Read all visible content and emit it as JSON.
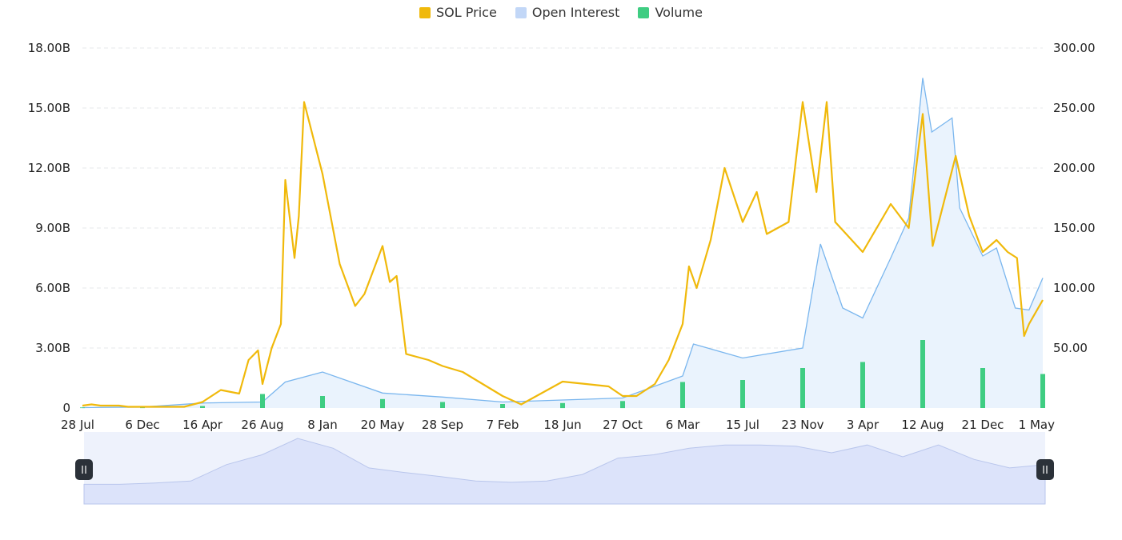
{
  "colors": {
    "price": "#F0B90B",
    "open_interest": "#7AB6EE",
    "open_interest_fill": "#EAF3FD",
    "volume": "#3FCD82",
    "grid": "#E6E8EB",
    "navigator_fill": "#DCE3FA",
    "navigator_bg": "#EEF2FC",
    "handle": "#2B3139"
  },
  "legend": [
    {
      "label": "SOL Price",
      "color": "#F0B90B",
      "icon": "square"
    },
    {
      "label": "Open Interest",
      "color": "#C2D7F7",
      "icon": "square"
    },
    {
      "label": "Volume",
      "color": "#3FCD82",
      "icon": "square"
    }
  ],
  "chart_data": {
    "type": "line",
    "title": "",
    "x_tick_labels": [
      "28 Jul",
      "6 Dec",
      "16 Apr",
      "26 Aug",
      "8 Jan",
      "20 May",
      "28 Sep",
      "7 Feb",
      "18 Jun",
      "27 Oct",
      "6 Mar",
      "15 Jul",
      "23 Nov",
      "3 Apr",
      "12 Aug",
      "21 Dec",
      "1 May"
    ],
    "y_left_ticks": [
      "0",
      "3.00B",
      "6.00B",
      "9.00B",
      "12.00B",
      "15.00B",
      "18.00B"
    ],
    "y_left_range": [
      0,
      18000000000
    ],
    "y_right_ticks": [
      "50.00",
      "100.00",
      "150.00",
      "200.00",
      "250.00",
      "300.00"
    ],
    "y_right_range": [
      0,
      300
    ],
    "grid": true,
    "legend_position": "top-center",
    "series": [
      {
        "name": "SOL Price",
        "axis": "right",
        "style": "line",
        "x": [
          "28 Jul",
          "17 Aug",
          "6 Sep",
          "26 Sep",
          "16 Oct",
          "5 Nov",
          "6 Dec",
          "5 Jan",
          "4 Feb",
          "6 Mar",
          "16 Apr",
          "26 May",
          "5 Jul",
          "26 Jul",
          "16 Aug",
          "26 Aug",
          "16 Sep",
          "6 Oct",
          "16 Oct",
          "6 Nov",
          "16 Nov",
          "28 Nov",
          "8 Jan",
          "16 Feb",
          "20 Mar",
          "10 Apr",
          "20 May",
          "5 Jun",
          "20 Jun",
          "10 Jul",
          "28 Aug",
          "28 Sep",
          "11 Nov",
          "7 Feb",
          "18 Mar",
          "18 Jun",
          "8 Aug",
          "27 Sep",
          "27 Oct",
          "27 Nov",
          "6 Jan",
          "6 Feb",
          "6 Mar",
          "20 Mar",
          "6 Apr",
          "6 May",
          "6 Jun",
          "15 Jul",
          "15 Aug",
          "6 Sep",
          "23 Oct",
          "23 Nov",
          "23 Dec",
          "15 Jan",
          "3 Feb",
          "3 Apr",
          "3 Jun",
          "12 Jul",
          "12 Aug",
          "3 Sep",
          "23 Oct",
          "22 Nov",
          "21 Dec",
          "21 Jan",
          "15 Feb",
          "5 Mar",
          "21 Mar",
          "1 Apr",
          "1 May"
        ],
        "values": [
          2,
          3,
          2,
          2,
          2,
          1,
          1,
          1,
          1,
          1,
          5,
          15,
          12,
          40,
          48,
          20,
          50,
          70,
          190,
          125,
          160,
          255,
          195,
          120,
          85,
          95,
          135,
          105,
          110,
          45,
          40,
          35,
          30,
          10,
          3,
          22,
          20,
          18,
          10,
          10,
          20,
          40,
          70,
          118,
          100,
          140,
          200,
          155,
          180,
          145,
          155,
          255,
          180,
          255,
          155,
          130,
          170,
          150,
          245,
          135,
          210,
          160,
          130,
          140,
          130,
          125,
          60,
          70,
          90
        ]
      },
      {
        "name": "Open Interest",
        "axis": "left",
        "style": "area",
        "x": [
          "28 Jul",
          "6 Dec",
          "16 Apr",
          "26 Aug",
          "16 Oct",
          "8 Jan",
          "20 May",
          "28 Sep",
          "7 Feb",
          "18 Jun",
          "27 Oct",
          "6 Mar",
          "30 Mar",
          "15 Jul",
          "23 Nov",
          "1 Jan",
          "20 Feb",
          "3 Apr",
          "3 Jun",
          "12 Jul",
          "12 Aug",
          "1 Sep",
          "15 Oct",
          "1 Nov",
          "21 Dec",
          "21 Jan",
          "1 Mar",
          "1 Apr",
          "1 May"
        ],
        "values": [
          0.02,
          0.05,
          0.25,
          0.3,
          1.3,
          1.8,
          0.75,
          0.55,
          0.3,
          0.4,
          0.5,
          1.6,
          3.2,
          2.5,
          3.0,
          8.2,
          5.0,
          4.5,
          7.5,
          9.5,
          16.5,
          13.8,
          14.5,
          10.0,
          7.6,
          8.0,
          5.0,
          4.9,
          6.5
        ]
      },
      {
        "name": "Volume",
        "axis": "left",
        "style": "bar",
        "x": [
          "28 Jul",
          "6 Dec",
          "16 Apr",
          "26 Aug",
          "8 Jan",
          "20 May",
          "28 Sep",
          "7 Feb",
          "18 Jun",
          "27 Oct",
          "6 Mar",
          "15 Jul",
          "23 Nov",
          "3 Apr",
          "12 Aug",
          "21 Dec",
          "1 May"
        ],
        "values": [
          0.03,
          0.05,
          0.1,
          0.7,
          0.6,
          0.45,
          0.3,
          0.2,
          0.25,
          0.35,
          1.3,
          1.4,
          2.0,
          2.3,
          3.4,
          2.0,
          1.7
        ]
      }
    ]
  },
  "navigator": {
    "left_handle_icon": "grip-handle-icon",
    "right_handle_icon": "grip-handle-icon",
    "series_values": [
      0.3,
      0.3,
      0.32,
      0.35,
      0.6,
      0.75,
      1.0,
      0.85,
      0.55,
      0.48,
      0.42,
      0.35,
      0.33,
      0.35,
      0.45,
      0.7,
      0.75,
      0.85,
      0.9,
      0.9,
      0.88,
      0.78,
      0.9,
      0.72,
      0.9,
      0.68,
      0.55,
      0.6
    ]
  }
}
